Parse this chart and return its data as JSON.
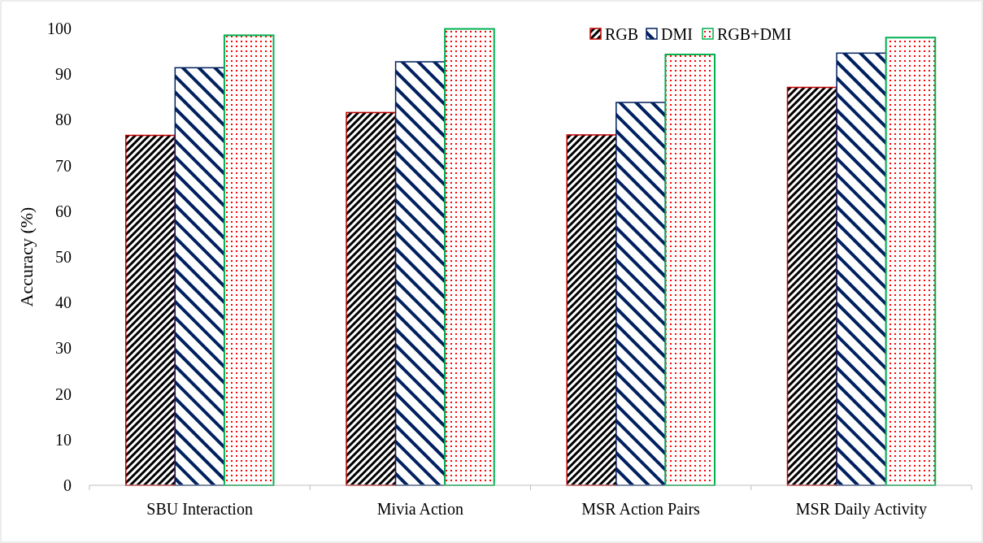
{
  "chart_data": {
    "type": "bar",
    "ylabel": "Accuracy (%)",
    "categories": [
      "SBU Interaction",
      "Mivia Action",
      "MSR Action Pairs",
      "MSR Daily Activity"
    ],
    "series": [
      {
        "name": "RGB",
        "color": "#c00000",
        "values": [
          76.6,
          81.6,
          76.7,
          87.1
        ]
      },
      {
        "name": "DMI",
        "color": "#002060",
        "values": [
          91.4,
          92.7,
          83.8,
          94.6
        ]
      },
      {
        "name": "RGB+DMI",
        "color": "#00b050",
        "values": [
          98.5,
          99.9,
          94.3,
          98.0
        ]
      }
    ],
    "ylim": [
      0,
      100
    ],
    "yticks": [
      0,
      10,
      20,
      30,
      40,
      50,
      60,
      70,
      80,
      90,
      100
    ],
    "grid": false,
    "legend": "top right"
  }
}
